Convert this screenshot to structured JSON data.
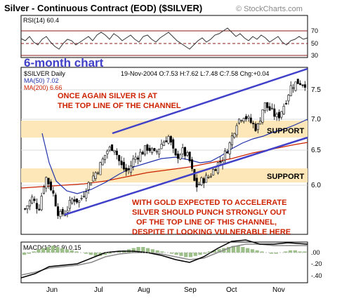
{
  "header": {
    "title": "Silver - Continuous Contract (EOD) ($SILVER)",
    "brand": "© StockCharts.com"
  },
  "rsi": {
    "label": "RSI(14) 60.4",
    "levels": [
      70,
      50,
      30
    ],
    "level_labels": [
      "70",
      "50",
      "30"
    ]
  },
  "price_panel": {
    "period_label": "6-month chart",
    "symbol_label": "$SILVER Daily",
    "quote": "19-Nov-2004 O:7.53 H:7.62 L:7.48 C:7.58 Chg:+0.04",
    "ma50_label": "MA(50) 7.02",
    "ma200_label": "MA(200) 6.66",
    "annotation_top": [
      "ONCE AGAIN SILVER IS AT",
      "THE TOP LINE OF THE CHANNEL"
    ],
    "annotation_bottom": [
      "WITH GOLD EXPECTED TO ACCELERATE",
      "SILVER SHOULD PUNCH STRONGLY OUT",
      "OF THE TOP LINE OF THIS CHANNEL,",
      "DESPITE IT LOOKING VULNERABLE HERE"
    ],
    "support_labels": [
      "SUPPORT",
      "SUPPORT"
    ],
    "y_ticks": [
      "7.5",
      "7.0",
      "6.5",
      "6.0"
    ]
  },
  "macd": {
    "label": "MACD(12,26,9) 0.15",
    "y_ticks": [
      ".00",
      "-.20",
      "-.40"
    ]
  },
  "x_labels": [
    "Jun",
    "Jul",
    "Aug",
    "Sep",
    "Oct",
    "Nov"
  ],
  "colors": {
    "accent_blue": "#4040c8",
    "annotation_red": "#cc2200",
    "support_band": "#fde7b8",
    "candle": "#000000",
    "ma50": "#2233aa",
    "ma200": "#cc2200"
  },
  "chart_data": [
    {
      "type": "line",
      "name": "RSI(14)",
      "ylim": [
        20,
        80
      ],
      "levels": [
        70,
        50,
        30
      ],
      "last": 60.4
    },
    {
      "type": "candlestick",
      "series_name": "$SILVER Daily",
      "ylim": [
        5.5,
        7.8
      ],
      "x": [
        "Jun",
        "Jul",
        "Aug",
        "Sep",
        "Oct",
        "Nov"
      ],
      "last_ohlc": {
        "date": "19-Nov-2004",
        "open": 7.53,
        "high": 7.62,
        "low": 7.48,
        "close": 7.58,
        "change": 0.04
      },
      "close_path": [
        5.85,
        6.0,
        5.85,
        6.3,
        6.1,
        5.75,
        5.82,
        6.0,
        5.95,
        6.15,
        6.3,
        6.45,
        6.65,
        6.72,
        6.45,
        6.35,
        6.55,
        6.62,
        6.7,
        6.6,
        6.75,
        6.85,
        6.55,
        6.65,
        6.55,
        6.15,
        6.25,
        6.3,
        6.45,
        6.55,
        6.75,
        7.05,
        7.15,
        7.05,
        6.95,
        7.3,
        7.2,
        7.1,
        7.3,
        7.55,
        7.6,
        7.58
      ],
      "moving_averages": [
        {
          "name": "MA(50)",
          "last": 7.02
        },
        {
          "name": "MA(200)",
          "last": 6.66
        }
      ],
      "channel": {
        "upper": [
          [
            0.0,
            6.95
          ],
          [
            1.0,
            7.85
          ]
        ],
        "lower": [
          [
            0.0,
            5.9
          ],
          [
            1.0,
            6.78
          ]
        ]
      },
      "support_bands": [
        [
          6.75,
          7.0
        ],
        [
          6.05,
          6.25
        ]
      ]
    },
    {
      "type": "line",
      "name": "MACD(12,26,9)",
      "ylim": [
        -0.45,
        0.15
      ],
      "last": 0.15
    }
  ]
}
